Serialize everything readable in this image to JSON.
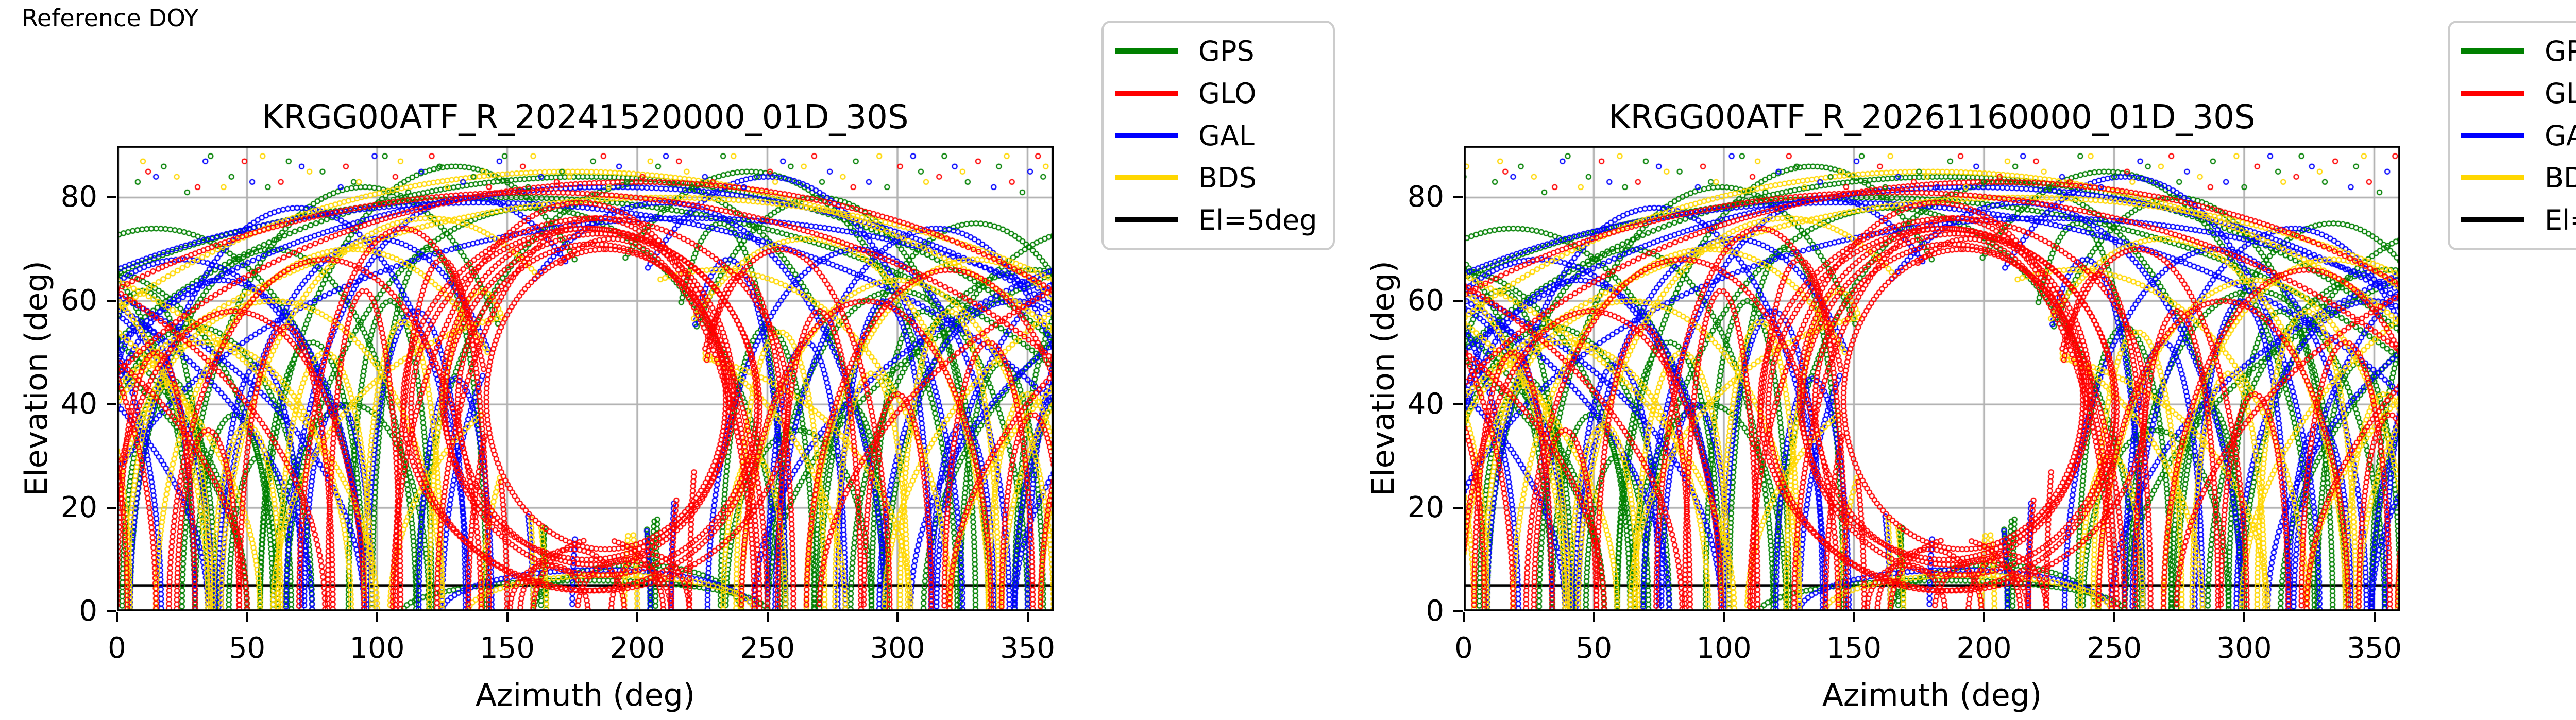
{
  "figure_label": "Reference DOY",
  "plots": [
    {
      "title": "KRGG00ATF_R_20241520000_01D_30S",
      "az_shift": 0
    },
    {
      "title": "KRGG00ATF_R_20261160000_01D_30S",
      "az_shift": 4
    }
  ],
  "axes": {
    "xlabel": "Azimuth (deg)",
    "ylabel": "Elevation (deg)",
    "xlim": [
      0,
      360
    ],
    "ylim": [
      0,
      90
    ],
    "xticks": [
      0,
      50,
      100,
      150,
      200,
      250,
      300,
      350
    ],
    "yticks": [
      0,
      20,
      40,
      60,
      80
    ],
    "grid": true,
    "cutoff_el": 5
  },
  "colors": {
    "GPS": "#008000",
    "GLO": "#ff0000",
    "GAL": "#0000ff",
    "BDS": "#ffd700",
    "cutoff": "#000000",
    "grid": "#b3b3b3",
    "axis": "#000000",
    "legend_border": "#cccccc"
  },
  "legend": {
    "entries": [
      {
        "label": "GPS",
        "color": "GPS"
      },
      {
        "label": "GLO",
        "color": "GLO"
      },
      {
        "label": "GAL",
        "color": "GAL"
      },
      {
        "label": "BDS",
        "color": "BDS"
      },
      {
        "label": "El=5deg",
        "color": "cutoff"
      }
    ]
  },
  "chart_data": {
    "type": "scatter",
    "description": "GNSS satellite sky tracks (elevation vs azimuth) over one day at 30 s sampling; open-circle markers; coverage hole toward the celestial pole ringed by GLONASS tracks; black cutoff line at 5 deg elevation.",
    "marker": {
      "shape": "open-circle",
      "radius_px": 4.5,
      "stroke_px": 2.5,
      "spacing_px": 8.5
    },
    "hole": {
      "az": 184,
      "el": 41,
      "az_radius": 44,
      "el_radius": 27.5
    },
    "tracks": [
      [
        "GPS",
        "arch",
        60,
        55,
        70
      ],
      [
        "GPS",
        "arch",
        95,
        70,
        82
      ],
      [
        "GPS",
        "arch",
        30,
        45,
        55
      ],
      [
        "GPS",
        "arch",
        330,
        60,
        75
      ],
      [
        "GPS",
        "arch",
        300,
        50,
        62
      ],
      [
        "GPS",
        "arch",
        270,
        65,
        80
      ],
      [
        "GPS",
        "arch",
        243,
        80,
        85
      ],
      [
        "GPS",
        "arch",
        130,
        75,
        86
      ],
      [
        "GPS",
        "arch",
        160,
        95,
        78
      ],
      [
        "GPS",
        "arch",
        205,
        90,
        83
      ],
      [
        "GPS",
        "arch",
        352,
        70,
        66
      ],
      [
        "GPS",
        "arch",
        15,
        80,
        74
      ],
      [
        "GPS",
        "arch",
        20,
        18,
        45
      ],
      [
        "GPS",
        "arch",
        45,
        15,
        38
      ],
      [
        "GPS",
        "arch",
        75,
        20,
        52
      ],
      [
        "GPS",
        "arch",
        105,
        16,
        60
      ],
      [
        "GPS",
        "arch",
        120,
        22,
        70
      ],
      [
        "GPS",
        "arch",
        250,
        18,
        55
      ],
      [
        "GPS",
        "arch",
        282,
        14,
        40
      ],
      [
        "GPS",
        "arch",
        310,
        20,
        58
      ],
      [
        "GPS",
        "arch",
        340,
        16,
        48
      ],
      [
        "GPS",
        "arch",
        55,
        12,
        30
      ],
      [
        "GPS",
        "arch",
        232,
        25,
        75
      ],
      [
        "GPS",
        "arch",
        90,
        30,
        40
      ],
      [
        "GPS",
        "arch",
        262,
        28,
        35
      ],
      [
        "GPS",
        "arch",
        10,
        25,
        62
      ],
      [
        "GPS",
        "arch",
        180,
        230,
        84
      ],
      [
        "GPS",
        "arch",
        150,
        260,
        80
      ],
      [
        "GPS",
        "arch",
        180,
        70,
        6
      ],
      [
        "GPS",
        "arch",
        200,
        40,
        9
      ],
      [
        "GLO",
        "loop",
        183,
        52,
        40,
        31
      ],
      [
        "GLO",
        "loop",
        186,
        60,
        40,
        33
      ],
      [
        "GLO",
        "loop",
        180,
        67,
        39,
        35
      ],
      [
        "GLO",
        "loop",
        188,
        46,
        41,
        29
      ],
      [
        "GLO",
        "loop",
        184,
        74,
        40,
        36
      ],
      [
        "GLO",
        "loop",
        181,
        56,
        42,
        32
      ],
      [
        "GLO",
        "arch",
        185,
        62,
        76
      ],
      [
        "GLO",
        "arch",
        178,
        72,
        79
      ],
      [
        "GLO",
        "arch",
        190,
        55,
        72
      ],
      [
        "GLO",
        "arch",
        80,
        60,
        68
      ],
      [
        "GLO",
        "arch",
        45,
        50,
        58
      ],
      [
        "GLO",
        "arch",
        320,
        55,
        66
      ],
      [
        "GLO",
        "arch",
        288,
        48,
        60
      ],
      [
        "GLO",
        "arch",
        110,
        40,
        74
      ],
      [
        "GLO",
        "arch",
        255,
        42,
        70
      ],
      [
        "GLO",
        "arch",
        15,
        15,
        50
      ],
      [
        "GLO",
        "arch",
        35,
        12,
        35
      ],
      [
        "GLO",
        "arch",
        65,
        18,
        55
      ],
      [
        "GLO",
        "arch",
        95,
        14,
        62
      ],
      [
        "GLO",
        "arch",
        270,
        16,
        58
      ],
      [
        "GLO",
        "arch",
        300,
        13,
        42
      ],
      [
        "GLO",
        "arch",
        335,
        17,
        52
      ],
      [
        "GLO",
        "arch",
        352,
        12,
        38
      ],
      [
        "GLO",
        "arch",
        240,
        20,
        65
      ],
      [
        "GLO",
        "arch",
        125,
        18,
        68
      ],
      [
        "GLO",
        "arch",
        200,
        240,
        83
      ],
      [
        "GLO",
        "arch",
        160,
        250,
        81
      ],
      [
        "GLO",
        "arch",
        175,
        20,
        12
      ],
      [
        "GLO",
        "arch",
        195,
        18,
        10
      ],
      [
        "GLO",
        "arch",
        185,
        25,
        14
      ],
      [
        "GLO",
        "arch",
        166,
        15,
        9
      ],
      [
        "GLO",
        "arch",
        205,
        15,
        11
      ],
      [
        "GAL",
        "arch",
        70,
        65,
        78
      ],
      [
        "GAL",
        "arch",
        40,
        55,
        64
      ],
      [
        "GAL",
        "arch",
        100,
        60,
        72
      ],
      [
        "GAL",
        "arch",
        135,
        70,
        80
      ],
      [
        "GAL",
        "arch",
        250,
        75,
        84
      ],
      [
        "GAL",
        "arch",
        285,
        58,
        70
      ],
      [
        "GAL",
        "arch",
        315,
        62,
        74
      ],
      [
        "GAL",
        "arch",
        345,
        52,
        60
      ],
      [
        "GAL",
        "arch",
        210,
        85,
        79
      ],
      [
        "GAL",
        "arch",
        25,
        70,
        68
      ],
      [
        "GAL",
        "arch",
        55,
        16,
        48
      ],
      [
        "GAL",
        "arch",
        85,
        13,
        40
      ],
      [
        "GAL",
        "arch",
        115,
        19,
        58
      ],
      [
        "GAL",
        "arch",
        265,
        15,
        52
      ],
      [
        "GAL",
        "arch",
        295,
        18,
        60
      ],
      [
        "GAL",
        "arch",
        325,
        12,
        36
      ],
      [
        "GAL",
        "arch",
        10,
        20,
        55
      ],
      [
        "GAL",
        "arch",
        235,
        22,
        68
      ],
      [
        "GAL",
        "arch",
        130,
        14,
        45
      ],
      [
        "GAL",
        "arch",
        190,
        245,
        82
      ],
      [
        "GAL",
        "arch",
        140,
        255,
        79
      ],
      [
        "GAL",
        "arch",
        220,
        235,
        76
      ],
      [
        "GAL",
        "arch",
        185,
        60,
        8
      ],
      [
        "BDS",
        "arch",
        90,
        75,
        70
      ],
      [
        "BDS",
        "arch",
        60,
        65,
        60
      ],
      [
        "BDS",
        "arch",
        120,
        80,
        76
      ],
      [
        "BDS",
        "arch",
        230,
        90,
        66
      ],
      [
        "BDS",
        "arch",
        265,
        70,
        72
      ],
      [
        "BDS",
        "arch",
        300,
        60,
        64
      ],
      [
        "BDS",
        "arch",
        205,
        100,
        50
      ],
      [
        "BDS",
        "arch",
        170,
        110,
        58
      ],
      [
        "BDS",
        "arch",
        35,
        55,
        52
      ],
      [
        "BDS",
        "arch",
        330,
        65,
        68
      ],
      [
        "BDS",
        "arch",
        20,
        16,
        44
      ],
      [
        "BDS",
        "arch",
        50,
        13,
        36
      ],
      [
        "BDS",
        "arch",
        80,
        18,
        50
      ],
      [
        "BDS",
        "arch",
        110,
        15,
        56
      ],
      [
        "BDS",
        "arch",
        255,
        17,
        54
      ],
      [
        "BDS",
        "arch",
        290,
        14,
        46
      ],
      [
        "BDS",
        "arch",
        320,
        19,
        58
      ],
      [
        "BDS",
        "arch",
        350,
        15,
        42
      ],
      [
        "BDS",
        "arch",
        140,
        20,
        62
      ],
      [
        "BDS",
        "arch",
        245,
        12,
        30
      ],
      [
        "BDS",
        "arch",
        175,
        240,
        85
      ],
      [
        "BDS",
        "arch",
        210,
        250,
        80
      ],
      [
        "BDS",
        "arch",
        190,
        55,
        7
      ]
    ],
    "top_dots": [
      [
        "GPS",
        8,
        83
      ],
      [
        "GPS",
        18,
        86
      ],
      [
        "GPS",
        27,
        81
      ],
      [
        "GPS",
        36,
        88
      ],
      [
        "GPS",
        44,
        84
      ],
      [
        "GPS",
        58,
        82
      ],
      [
        "GPS",
        66,
        87
      ],
      [
        "GPS",
        79,
        85
      ],
      [
        "GPS",
        91,
        83
      ],
      [
        "GPS",
        103,
        88
      ],
      [
        "GPS",
        112,
        81
      ],
      [
        "GPS",
        124,
        86
      ],
      [
        "GPS",
        137,
        84
      ],
      [
        "GPS",
        149,
        88
      ],
      [
        "GPS",
        158,
        82
      ],
      [
        "GPS",
        171,
        85
      ],
      [
        "GPS",
        183,
        87
      ],
      [
        "GPS",
        196,
        83
      ],
      [
        "GPS",
        208,
        86
      ],
      [
        "GPS",
        221,
        82
      ],
      [
        "GPS",
        233,
        88
      ],
      [
        "GPS",
        246,
        84
      ],
      [
        "GPS",
        259,
        86
      ],
      [
        "GPS",
        271,
        83
      ],
      [
        "GPS",
        284,
        87
      ],
      [
        "GPS",
        296,
        82
      ],
      [
        "GPS",
        309,
        85
      ],
      [
        "GPS",
        318,
        88
      ],
      [
        "GPS",
        327,
        83
      ],
      [
        "GPS",
        339,
        86
      ],
      [
        "GPS",
        348,
        81
      ],
      [
        "GPS",
        356,
        84
      ],
      [
        "GLO",
        12,
        85
      ],
      [
        "GLO",
        31,
        82
      ],
      [
        "GLO",
        49,
        87
      ],
      [
        "GLO",
        63,
        83
      ],
      [
        "GLO",
        88,
        86
      ],
      [
        "GLO",
        107,
        84
      ],
      [
        "GLO",
        121,
        88
      ],
      [
        "GLO",
        143,
        82
      ],
      [
        "GLO",
        156,
        86
      ],
      [
        "GLO",
        169,
        83
      ],
      [
        "GLO",
        187,
        88
      ],
      [
        "GLO",
        202,
        84
      ],
      [
        "GLO",
        216,
        87
      ],
      [
        "GLO",
        229,
        83
      ],
      [
        "GLO",
        251,
        85
      ],
      [
        "GLO",
        268,
        88
      ],
      [
        "GLO",
        283,
        82
      ],
      [
        "GLO",
        301,
        86
      ],
      [
        "GLO",
        316,
        84
      ],
      [
        "GLO",
        331,
        87
      ],
      [
        "GLO",
        344,
        83
      ],
      [
        "GLO",
        354,
        88
      ],
      [
        "GAL",
        15,
        84
      ],
      [
        "GAL",
        34,
        87
      ],
      [
        "GAL",
        52,
        83
      ],
      [
        "GAL",
        71,
        86
      ],
      [
        "GAL",
        86,
        82
      ],
      [
        "GAL",
        99,
        88
      ],
      [
        "GAL",
        117,
        85
      ],
      [
        "GAL",
        133,
        83
      ],
      [
        "GAL",
        147,
        87
      ],
      [
        "GAL",
        163,
        84
      ],
      [
        "GAL",
        178,
        82
      ],
      [
        "GAL",
        193,
        86
      ],
      [
        "GAL",
        211,
        88
      ],
      [
        "GAL",
        226,
        84
      ],
      [
        "GAL",
        241,
        82
      ],
      [
        "GAL",
        256,
        87
      ],
      [
        "GAL",
        274,
        85
      ],
      [
        "GAL",
        289,
        83
      ],
      [
        "GAL",
        306,
        88
      ],
      [
        "GAL",
        322,
        86
      ],
      [
        "GAL",
        337,
        82
      ],
      [
        "GAL",
        351,
        85
      ],
      [
        "BDS",
        10,
        87
      ],
      [
        "BDS",
        23,
        84
      ],
      [
        "BDS",
        41,
        82
      ],
      [
        "BDS",
        56,
        88
      ],
      [
        "BDS",
        74,
        85
      ],
      [
        "BDS",
        93,
        83
      ],
      [
        "BDS",
        109,
        87
      ],
      [
        "BDS",
        127,
        82
      ],
      [
        "BDS",
        141,
        85
      ],
      [
        "BDS",
        160,
        88
      ],
      [
        "BDS",
        174,
        84
      ],
      [
        "BDS",
        189,
        82
      ],
      [
        "BDS",
        205,
        87
      ],
      [
        "BDS",
        219,
        85
      ],
      [
        "BDS",
        237,
        88
      ],
      [
        "BDS",
        253,
        83
      ],
      [
        "BDS",
        264,
        86
      ],
      [
        "BDS",
        279,
        84
      ],
      [
        "BDS",
        293,
        88
      ],
      [
        "BDS",
        311,
        83
      ],
      [
        "BDS",
        325,
        85
      ],
      [
        "BDS",
        342,
        88
      ],
      [
        "BDS",
        357,
        86
      ]
    ]
  }
}
